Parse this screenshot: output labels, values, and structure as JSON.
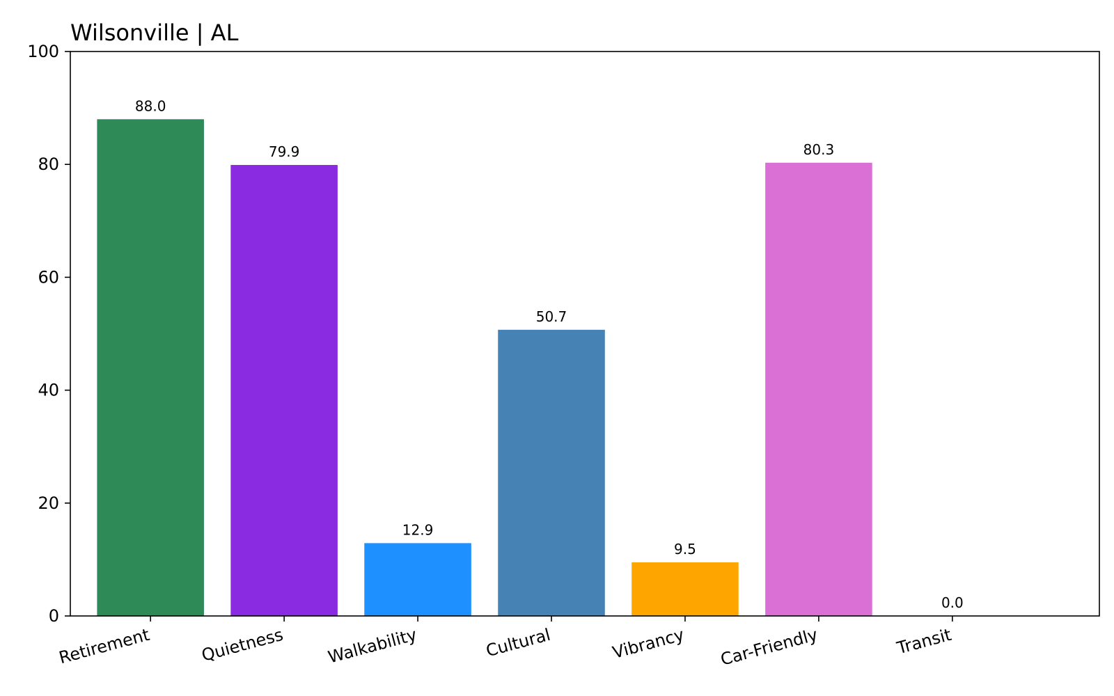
{
  "chart_data": {
    "type": "bar",
    "title": "Wilsonville | AL",
    "xlabel": "",
    "ylabel": "",
    "ylim": [
      0,
      100
    ],
    "yticks": [
      0,
      20,
      40,
      60,
      80,
      100
    ],
    "ytick_labels": [
      "0",
      "20",
      "40",
      "60",
      "80",
      "100"
    ],
    "grid": false,
    "legend": "none",
    "categories": [
      "Retirement",
      "Quietness",
      "Walkability",
      "Cultural",
      "Vibrancy",
      "Car-Friendly",
      "Transit"
    ],
    "values": [
      88.0,
      79.9,
      12.9,
      50.7,
      9.5,
      80.3,
      0.0
    ],
    "value_labels": [
      "88.0",
      "79.9",
      "12.9",
      "50.7",
      "9.5",
      "80.3",
      "0.0"
    ],
    "colors": [
      "#2e8b57",
      "#8a2be2",
      "#1e90ff",
      "#4682b4",
      "#ffa500",
      "#da70d6",
      "#808080"
    ]
  }
}
